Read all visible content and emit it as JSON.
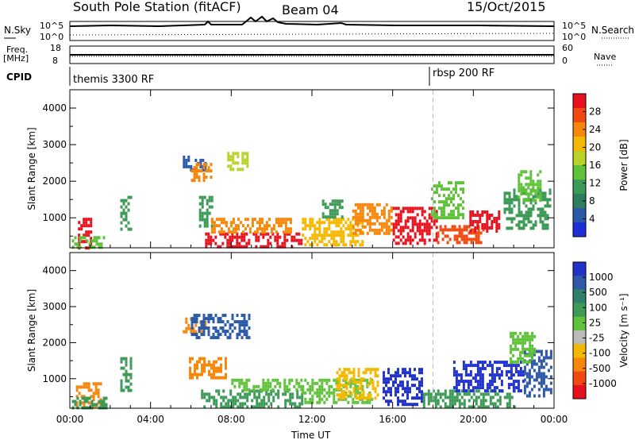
{
  "header": {
    "station": "South Pole Station (fitACF)",
    "beam": "Beam 04",
    "date": "15/Oct/2015"
  },
  "info_panels": {
    "nsky_label": "N.Sky",
    "nsky_ticks": [
      "10^5",
      "10^0"
    ],
    "nsearch_label": "N.Search",
    "nsearch_ticks": [
      "10^5",
      "10^0"
    ],
    "freq_label": "Freq.",
    "freq_unit": "[MHz]",
    "freq_ticks": [
      "18",
      "8"
    ],
    "nave_label": "Nave",
    "nave_ticks": [
      "60",
      "0"
    ],
    "cpid_label": "CPID",
    "cpid_programs": [
      "themis 3300 RF",
      "rbsp 200 RF"
    ]
  },
  "colorbars": {
    "power": {
      "label": "Power [dB]",
      "ticks": [
        "28",
        "24",
        "20",
        "16",
        "12",
        "8",
        "4"
      ],
      "colors": [
        "#e8121e",
        "#f04a10",
        "#f6870b",
        "#f5b800",
        "#b9d22a",
        "#5fc23a",
        "#3e9a57",
        "#2e7d5e",
        "#2b5aa8",
        "#1f2fd8"
      ]
    },
    "velocity": {
      "label": "Velocity [m s⁻¹]",
      "ticks": [
        "1000",
        "500",
        "100",
        "25",
        "-25",
        "-100",
        "-500",
        "-1000"
      ],
      "colors": [
        "#2233cc",
        "#2f5aa8",
        "#2f7f6a",
        "#3e9a57",
        "#5fc23a",
        "#bbbbbb",
        "#f5b800",
        "#f6870b",
        "#f04a10",
        "#e8121e"
      ]
    }
  },
  "chart_data": [
    {
      "type": "heatmap",
      "title": "",
      "ylabel": "Slant Range [km]",
      "xlabel": "",
      "x_ticks": [
        "00:00",
        "04:00",
        "08:00",
        "12:00",
        "16:00",
        "20:00",
        "00:00"
      ],
      "y_ticks": [
        "1000",
        "2000",
        "3000",
        "4000"
      ],
      "xlim": [
        0,
        24
      ],
      "ylim": [
        180,
        4500
      ],
      "colorbar": "power",
      "cpid_change_hour": 18,
      "regions": [
        {
          "x": [
            0.4,
            1.0
          ],
          "y": [
            200,
            1000
          ],
          "color": "#e8121e"
        },
        {
          "x": [
            0.1,
            1.7
          ],
          "y": [
            200,
            500
          ],
          "color": "#5fc23a"
        },
        {
          "x": [
            2.5,
            3.0
          ],
          "y": [
            700,
            1600
          ],
          "color": "#3e9a57"
        },
        {
          "x": [
            5.6,
            6.7
          ],
          "y": [
            2300,
            2700
          ],
          "color": "#2b5aa8"
        },
        {
          "x": [
            6.0,
            7.0
          ],
          "y": [
            2000,
            2500
          ],
          "color": "#f6870b"
        },
        {
          "x": [
            7.8,
            8.8
          ],
          "y": [
            2300,
            2800
          ],
          "color": "#b9d22a"
        },
        {
          "x": [
            6.4,
            7.0
          ],
          "y": [
            800,
            1600
          ],
          "color": "#3e9a57"
        },
        {
          "x": [
            6.7,
            11.5
          ],
          "y": [
            200,
            600
          ],
          "color": "#e8121e"
        },
        {
          "x": [
            7.0,
            11.0
          ],
          "y": [
            600,
            1000
          ],
          "color": "#f6870b"
        },
        {
          "x": [
            11.5,
            14.5
          ],
          "y": [
            300,
            1000
          ],
          "color": "#f5b800"
        },
        {
          "x": [
            12.5,
            13.5
          ],
          "y": [
            1000,
            1500
          ],
          "color": "#3e9a57"
        },
        {
          "x": [
            14.0,
            16.0
          ],
          "y": [
            600,
            1400
          ],
          "color": "#f6870b"
        },
        {
          "x": [
            16.0,
            18.2
          ],
          "y": [
            300,
            1300
          ],
          "color": "#e8121e"
        },
        {
          "x": [
            17.9,
            19.5
          ],
          "y": [
            1000,
            2000
          ],
          "color": "#5fc23a"
        },
        {
          "x": [
            18.2,
            20.5
          ],
          "y": [
            300,
            800
          ],
          "color": "#f04a10"
        },
        {
          "x": [
            19.8,
            21.3
          ],
          "y": [
            600,
            1200
          ],
          "color": "#e8121e"
        },
        {
          "x": [
            21.5,
            23.8
          ],
          "y": [
            700,
            1800
          ],
          "color": "#3e9a57"
        },
        {
          "x": [
            22.2,
            23.3
          ],
          "y": [
            1500,
            2300
          ],
          "color": "#5fc23a"
        }
      ]
    },
    {
      "type": "heatmap",
      "title": "",
      "ylabel": "Slant Range [km]",
      "xlabel": "Time UT",
      "x_ticks": [
        "00:00",
        "04:00",
        "08:00",
        "12:00",
        "16:00",
        "20:00",
        "00:00"
      ],
      "y_ticks": [
        "1000",
        "2000",
        "3000",
        "4000"
      ],
      "xlim": [
        0,
        24
      ],
      "ylim": [
        180,
        4500
      ],
      "colorbar": "velocity",
      "cpid_change_hour": 18,
      "regions": [
        {
          "x": [
            0.3,
            1.5
          ],
          "y": [
            200,
            900
          ],
          "color": "#f6870b"
        },
        {
          "x": [
            0.1,
            1.8
          ],
          "y": [
            200,
            500
          ],
          "color": "#3e9a57"
        },
        {
          "x": [
            2.5,
            3.0
          ],
          "y": [
            700,
            1600
          ],
          "color": "#3e9a57"
        },
        {
          "x": [
            5.6,
            6.7
          ],
          "y": [
            2300,
            2700
          ],
          "color": "#f6870b"
        },
        {
          "x": [
            6.0,
            8.9
          ],
          "y": [
            2100,
            2800
          ],
          "color": "#2b5aa8"
        },
        {
          "x": [
            5.9,
            7.7
          ],
          "y": [
            1000,
            1600
          ],
          "color": "#f6870b"
        },
        {
          "x": [
            6.5,
            11.5
          ],
          "y": [
            200,
            700
          ],
          "color": "#3e9a57"
        },
        {
          "x": [
            8.0,
            11.5
          ],
          "y": [
            700,
            1000
          ],
          "color": "#5fc23a"
        },
        {
          "x": [
            11.5,
            15.0
          ],
          "y": [
            300,
            1000
          ],
          "color": "#5fc23a"
        },
        {
          "x": [
            13.2,
            15.3
          ],
          "y": [
            500,
            1300
          ],
          "color": "#f5b800"
        },
        {
          "x": [
            15.5,
            17.5
          ],
          "y": [
            300,
            1300
          ],
          "color": "#2233cc"
        },
        {
          "x": [
            17.5,
            22.0
          ],
          "y": [
            200,
            700
          ],
          "color": "#3e9a57"
        },
        {
          "x": [
            19.0,
            22.5
          ],
          "y": [
            700,
            1500
          ],
          "color": "#2233cc"
        },
        {
          "x": [
            22.5,
            23.9
          ],
          "y": [
            500,
            1800
          ],
          "color": "#2f5aa8"
        },
        {
          "x": [
            21.8,
            23.0
          ],
          "y": [
            1500,
            2300
          ],
          "color": "#5fc23a"
        }
      ]
    }
  ]
}
